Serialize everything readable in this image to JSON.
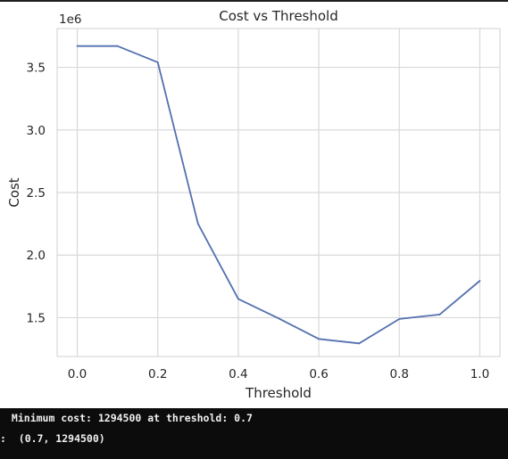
{
  "chart_data": {
    "type": "line",
    "title": "Cost vs Threshold",
    "xlabel": "Threshold",
    "ylabel": "Cost",
    "y_offset_label": "1e6",
    "x": [
      0.0,
      0.1,
      0.2,
      0.3,
      0.4,
      0.5,
      0.6,
      0.7,
      0.8,
      0.9,
      1.0
    ],
    "series": [
      {
        "values": [
          3670000,
          3670000,
          3540000,
          2250000,
          1650000,
          1495000,
          1330000,
          1294500,
          1490000,
          1525000,
          1795000
        ]
      }
    ],
    "xlim": [
      -0.05,
      1.05
    ],
    "ylim": [
      1190000.0,
      3810000.0
    ],
    "x_ticks": [
      0.0,
      0.2,
      0.4,
      0.6,
      0.8,
      1.0
    ],
    "x_tick_labels": [
      "0.0",
      "0.2",
      "0.4",
      "0.6",
      "0.8",
      "1.0"
    ],
    "y_ticks": [
      1500000.0,
      2000000.0,
      2500000.0,
      3000000.0,
      3500000.0
    ],
    "y_tick_labels": [
      "1.5",
      "2.0",
      "2.5",
      "3.0",
      "3.5"
    ],
    "grid": true,
    "line_color": "#5470b0",
    "grid_color": "#d9d9d9"
  },
  "console": {
    "line1": " Minimum cost: 1294500 at threshold: 0.7",
    "line2": ":  (0.7, 1294500)"
  }
}
